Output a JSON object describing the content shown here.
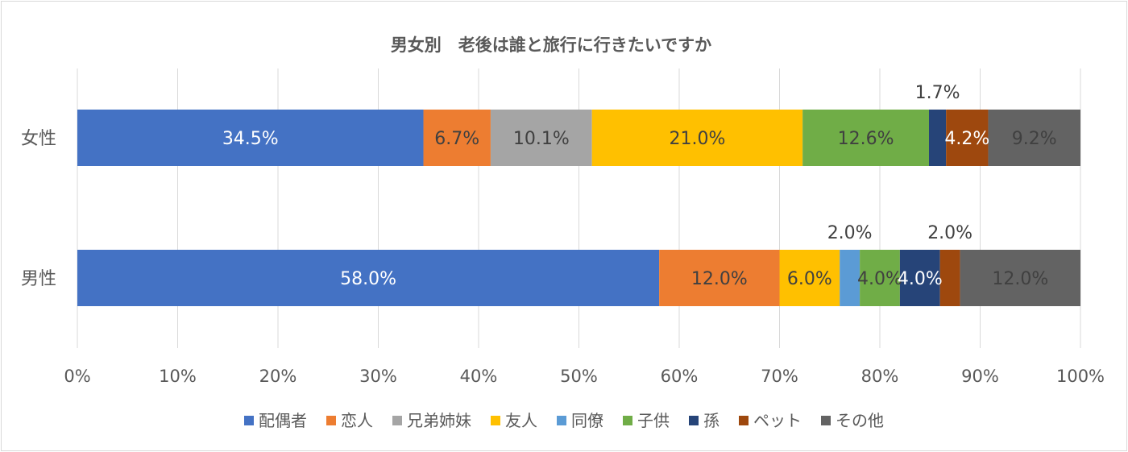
{
  "chart_data": {
    "type": "bar",
    "orientation": "horizontal",
    "stacked": "percent",
    "title": "男女別　老後は誰と旅行に行きたいですか",
    "categories": [
      "女性",
      "男性"
    ],
    "series": [
      {
        "name": "配偶者",
        "color": "#4472C4",
        "values": [
          34.5,
          58.0
        ],
        "labels": [
          "34.5%",
          "58.0%"
        ],
        "label_color": "#ffffff"
      },
      {
        "name": "恋人",
        "color": "#ED7D31",
        "values": [
          6.7,
          12.0
        ],
        "labels": [
          "6.7%",
          "12.0%"
        ],
        "label_color": "#404040"
      },
      {
        "name": "兄弟姉妹",
        "color": "#A5A5A5",
        "values": [
          10.1,
          0
        ],
        "labels": [
          "10.1%",
          ""
        ],
        "label_color": "#404040"
      },
      {
        "name": "友人",
        "color": "#FFC000",
        "values": [
          21.0,
          6.0
        ],
        "labels": [
          "21.0%",
          "6.0%"
        ],
        "label_color": "#404040"
      },
      {
        "name": "同僚",
        "color": "#5B9BD5",
        "values": [
          0,
          2.0
        ],
        "labels": [
          "",
          "2.0%"
        ],
        "label_color": "#404040",
        "label_above": [
          false,
          true
        ]
      },
      {
        "name": "子供",
        "color": "#70AD47",
        "values": [
          12.6,
          4.0
        ],
        "labels": [
          "12.6%",
          "4.0%"
        ],
        "label_color": "#404040"
      },
      {
        "name": "孫",
        "color": "#264478",
        "values": [
          1.7,
          4.0
        ],
        "labels": [
          "1.7%",
          "4.0%"
        ],
        "label_color": "#ffffff",
        "label_above": [
          true,
          false
        ]
      },
      {
        "name": "ペット",
        "color": "#9E480E",
        "values": [
          4.2,
          2.0
        ],
        "labels": [
          "4.2%",
          "2.0%"
        ],
        "label_color": "#ffffff",
        "label_above": [
          false,
          true
        ]
      },
      {
        "name": "その他",
        "color": "#636363",
        "values": [
          9.2,
          12.0
        ],
        "labels": [
          "9.2%",
          "12.0%"
        ],
        "label_color": "#404040"
      }
    ],
    "x_ticks": [
      "0%",
      "10%",
      "20%",
      "30%",
      "40%",
      "50%",
      "60%",
      "70%",
      "80%",
      "90%",
      "100%"
    ],
    "xlim": [
      0,
      100
    ],
    "grid": true,
    "legend_position": "bottom"
  }
}
